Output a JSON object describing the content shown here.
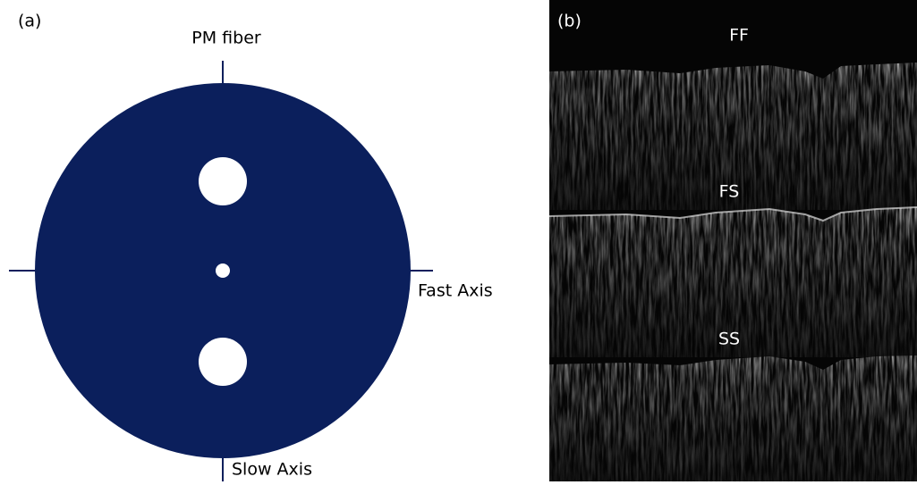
{
  "panel_a": {
    "label": "(a)",
    "title": "PM fiber",
    "fast_axis": "Fast Axis",
    "slow_axis": "Slow Axis"
  },
  "panel_b": {
    "label": "(b)",
    "layers": [
      "FF",
      "FS",
      "SS"
    ]
  }
}
